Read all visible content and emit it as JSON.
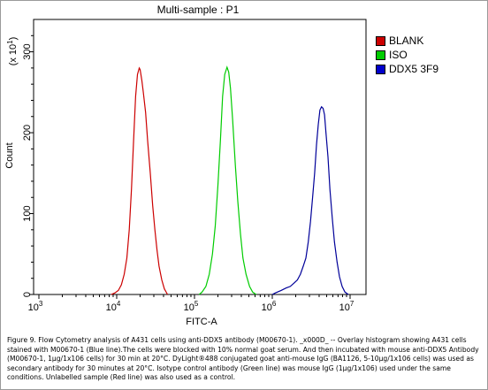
{
  "chart_data": {
    "type": "area",
    "title": "Multi-sample : P1",
    "xlabel": "FITC-A",
    "ylabel": "Count",
    "y_multiplier_label": "(x 10",
    "y_multiplier_exp": "1",
    "y_multiplier_close": ")",
    "x_scale": "log",
    "xlim": [
      1000,
      10000000
    ],
    "ylim": [
      0,
      340
    ],
    "x_ticks": [
      {
        "base": "10",
        "exp": "3",
        "value": 1000
      },
      {
        "base": "10",
        "exp": "4",
        "value": 10000
      },
      {
        "base": "10",
        "exp": "5",
        "value": 100000
      },
      {
        "base": "10",
        "exp": "6",
        "value": 1000000
      },
      {
        "base": "10",
        "exp": "7",
        "value": 10000000
      }
    ],
    "y_ticks": [
      {
        "label": "0",
        "value": 0
      },
      {
        "label": "100",
        "value": 100
      },
      {
        "label": "200",
        "value": 200
      },
      {
        "label": "300",
        "value": 300
      }
    ],
    "legend_position": "right",
    "series": [
      {
        "name": "BLANK",
        "color": "#cc0000",
        "points": [
          [
            8500,
            0
          ],
          [
            9500,
            2
          ],
          [
            10500,
            5
          ],
          [
            11500,
            12
          ],
          [
            12500,
            25
          ],
          [
            13500,
            45
          ],
          [
            14500,
            80
          ],
          [
            15500,
            130
          ],
          [
            16500,
            190
          ],
          [
            17500,
            245
          ],
          [
            18500,
            272
          ],
          [
            19500,
            280
          ],
          [
            20000,
            278
          ],
          [
            21000,
            265
          ],
          [
            22000,
            250
          ],
          [
            23500,
            225
          ],
          [
            25000,
            190
          ],
          [
            27000,
            150
          ],
          [
            29000,
            110
          ],
          [
            31000,
            80
          ],
          [
            33000,
            55
          ],
          [
            35000,
            35
          ],
          [
            38000,
            18
          ],
          [
            41000,
            7
          ],
          [
            45000,
            0
          ]
        ]
      },
      {
        "name": "ISO",
        "color": "#00cc00",
        "points": [
          [
            115000,
            0
          ],
          [
            125000,
            3
          ],
          [
            140000,
            10
          ],
          [
            155000,
            25
          ],
          [
            170000,
            50
          ],
          [
            185000,
            85
          ],
          [
            200000,
            135
          ],
          [
            215000,
            190
          ],
          [
            230000,
            245
          ],
          [
            245000,
            272
          ],
          [
            262000,
            281
          ],
          [
            275000,
            275
          ],
          [
            290000,
            255
          ],
          [
            310000,
            215
          ],
          [
            335000,
            160
          ],
          [
            360000,
            115
          ],
          [
            390000,
            75
          ],
          [
            420000,
            45
          ],
          [
            460000,
            25
          ],
          [
            510000,
            10
          ],
          [
            560000,
            3
          ],
          [
            620000,
            0
          ]
        ]
      },
      {
        "name": "DDX5 3F9",
        "color": "#000099",
        "points": [
          [
            1000000,
            0
          ],
          [
            1100000,
            2
          ],
          [
            1300000,
            5
          ],
          [
            1500000,
            8
          ],
          [
            1700000,
            10
          ],
          [
            1900000,
            14
          ],
          [
            2100000,
            18
          ],
          [
            2300000,
            25
          ],
          [
            2500000,
            35
          ],
          [
            2700000,
            45
          ],
          [
            2900000,
            65
          ],
          [
            3100000,
            90
          ],
          [
            3300000,
            120
          ],
          [
            3500000,
            150
          ],
          [
            3700000,
            185
          ],
          [
            3900000,
            210
          ],
          [
            4100000,
            228
          ],
          [
            4300000,
            232
          ],
          [
            4500000,
            230
          ],
          [
            4700000,
            222
          ],
          [
            4900000,
            200
          ],
          [
            5200000,
            170
          ],
          [
            5500000,
            130
          ],
          [
            5900000,
            95
          ],
          [
            6300000,
            65
          ],
          [
            6800000,
            40
          ],
          [
            7300000,
            22
          ],
          [
            7900000,
            10
          ],
          [
            8600000,
            3
          ],
          [
            9500000,
            0
          ]
        ]
      }
    ]
  },
  "caption": "Figure 9. Flow Cytometry analysis of A431 cells using anti-DDX5 antibody (M00670-1). _x000D_ -- Overlay histogram showing A431 cells stained with M00670-1 (Blue line).The cells were blocked with 10% normal goat serum. And then incubated with mouse anti-DDX5 Antibody (M00670-1, 1µg/1x106 cells) for 30 min at 20°C. DyLight®488 conjugated goat anti-mouse IgG (BA1126, 5-10µg/1x106 cells) was used as secondary antibody for 30 minutes at 20°C. Isotype control antibody (Green line) was mouse IgG (1µg/1x106) used under the same conditions. Unlabelled sample (Red line) was also used as a control."
}
